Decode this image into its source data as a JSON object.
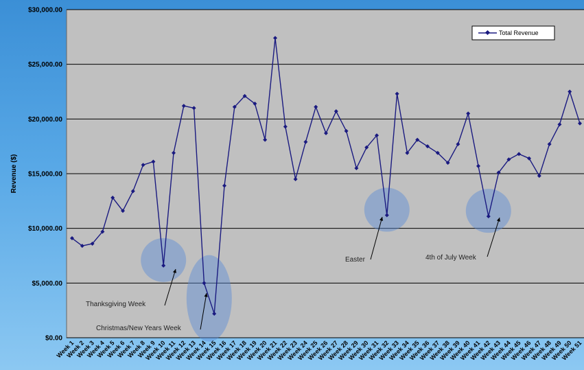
{
  "chart_data": {
    "type": "line",
    "title": "",
    "xlabel": "",
    "ylabel": "Revenue ($)",
    "ylim": [
      0,
      30000
    ],
    "yticks": [
      "$0.00",
      "$5,000.00",
      "$10,000.00",
      "$15,000.00",
      "$20,000.00",
      "$25,000.00",
      "$30,000.00"
    ],
    "ytick_values": [
      0,
      5000,
      10000,
      15000,
      20000,
      25000,
      30000
    ],
    "grid": true,
    "legend_position": "top-right",
    "categories": [
      "Week 1",
      "Week 2",
      "Week 3",
      "Week 4",
      "Week 5",
      "Week 6",
      "Week 7",
      "Week 8",
      "Week 9",
      "Week 10",
      "Week 11",
      "Week 12",
      "Week 13",
      "Week 14",
      "Week 15",
      "Week 16",
      "Week 17",
      "Week 18",
      "Week 19",
      "Week 20",
      "Week 21",
      "Week 22",
      "Week 23",
      "Week 24",
      "Week 25",
      "Week 26",
      "Week 27",
      "Week 28",
      "Week 29",
      "Week 30",
      "Week 31",
      "Week 32",
      "Week 33",
      "Week 34",
      "Week 35",
      "Week 36",
      "Week 37",
      "Week 38",
      "Week 39",
      "Week 40",
      "Week 41",
      "Week 42",
      "Week 43",
      "Week 44",
      "Week 45",
      "Week 46",
      "Week 47",
      "Week 48",
      "Week 49",
      "Week 50",
      "Week 51"
    ],
    "series": [
      {
        "name": "Total Revenue",
        "color": "#1a1a80",
        "values": [
          9100,
          8400,
          8600,
          9700,
          12800,
          11600,
          13400,
          15800,
          16100,
          6600,
          16900,
          21200,
          21000,
          5000,
          2200,
          13900,
          21100,
          22100,
          21400,
          18100,
          27400,
          19300,
          14500,
          17900,
          21100,
          18700,
          20700,
          18900,
          15500,
          17400,
          18500,
          11200,
          22300,
          16900,
          18100,
          17500,
          16900,
          16000,
          17700,
          20500,
          15700,
          11100,
          15100,
          16300,
          16800,
          16400,
          14800,
          17700,
          19500,
          22500,
          19600
        ]
      }
    ],
    "annotations": [
      {
        "text": "Thanksgiving Week",
        "week_index": 9
      },
      {
        "text": "Christmas/New Years Week",
        "week_index": 13
      },
      {
        "text": "Easter",
        "week_index": 31
      },
      {
        "text": "4th of July Week",
        "week_index": 41
      }
    ]
  }
}
